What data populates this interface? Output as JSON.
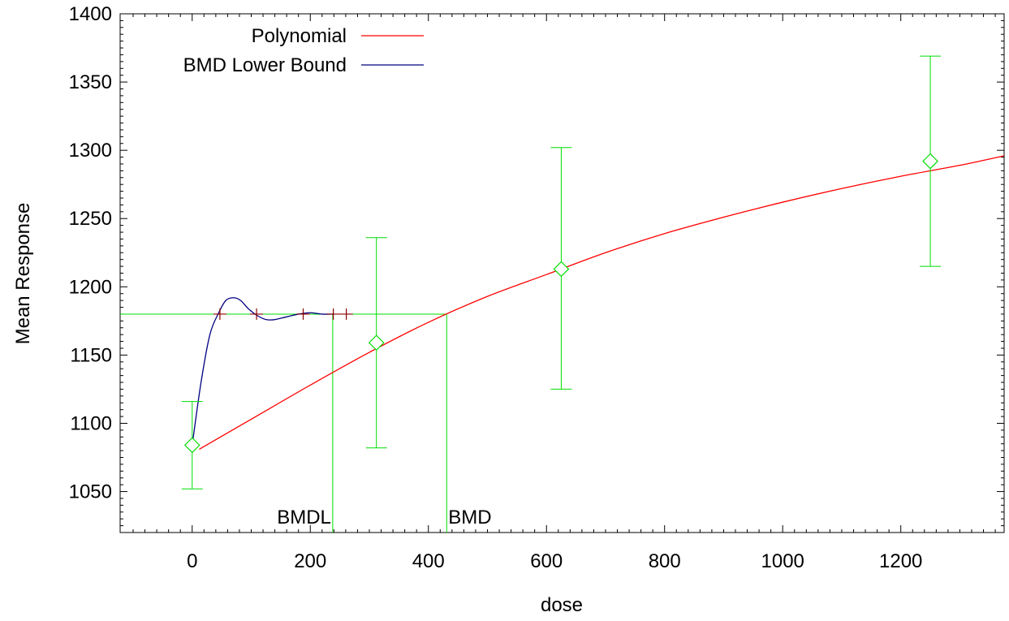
{
  "chart_data": {
    "type": "scatter",
    "xlabel": "dose",
    "ylabel": "Mean Response",
    "xlim": [
      -122,
      1375
    ],
    "ylim": [
      1020,
      1400
    ],
    "xticks": [
      0,
      200,
      400,
      600,
      800,
      1000,
      1200
    ],
    "yticks": [
      1050,
      1100,
      1150,
      1200,
      1250,
      1300,
      1350,
      1400
    ],
    "legend": {
      "placement": "top-left",
      "entries": [
        {
          "label": "Polynomial",
          "color": "#ff0000"
        },
        {
          "label": "BMD Lower Bound",
          "color": "#000080"
        }
      ]
    },
    "observations": {
      "color": "#00dd00",
      "points": [
        {
          "x": 0,
          "y": 1084,
          "lower": 1052,
          "upper": 1116
        },
        {
          "x": 312,
          "y": 1159,
          "lower": 1082,
          "upper": 1236
        },
        {
          "x": 625,
          "y": 1213,
          "lower": 1125,
          "upper": 1302
        },
        {
          "x": 1250,
          "y": 1292,
          "lower": 1215,
          "upper": 1369
        }
      ]
    },
    "polynomial": {
      "name": "Polynomial",
      "color": "#ff0000",
      "x": [
        12,
        100,
        200,
        300,
        400,
        500,
        600,
        700,
        800,
        900,
        1000,
        1100,
        1200,
        1300,
        1375
      ],
      "y": [
        1081,
        1103,
        1128,
        1152,
        1174,
        1193,
        1209,
        1225,
        1239,
        1251,
        1262,
        1272,
        1281,
        1289,
        1296
      ]
    },
    "bmd_lower_bound": {
      "name": "BMD Lower Bound",
      "color": "#000080",
      "x": [
        0,
        15,
        30,
        45,
        57,
        70,
        82,
        95,
        110,
        125,
        140,
        160,
        180,
        200,
        220,
        240
      ],
      "y": [
        1084,
        1130,
        1165,
        1181,
        1190,
        1192,
        1190,
        1184,
        1179,
        1176,
        1176,
        1178,
        1180,
        1181,
        1180,
        1180
      ]
    },
    "bmdl_markers": {
      "color": "#8b0000",
      "y": 1180,
      "x": [
        47,
        109,
        188,
        239,
        261
      ]
    },
    "reference_lines": {
      "color": "#00dd00",
      "bmr_level": 1180,
      "bmdl": {
        "label": "BMDL",
        "x": 238
      },
      "bmd": {
        "label": "BMD",
        "x": 431
      }
    }
  }
}
